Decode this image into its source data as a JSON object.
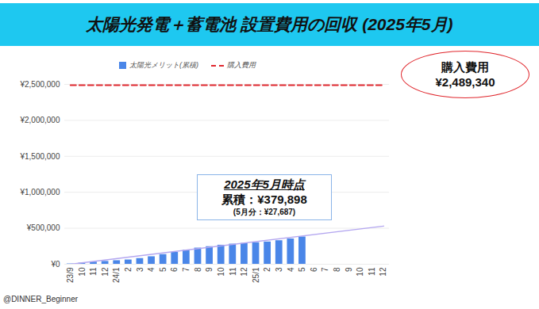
{
  "chart_data": {
    "type": "bar",
    "title": "太陽光発電＋蓄電池 設置費用の回収 (2025年5月)",
    "categories": [
      "23/9",
      "10",
      "11",
      "12",
      "24/1",
      "2",
      "3",
      "4",
      "5",
      "6",
      "7",
      "8",
      "9",
      "10",
      "11",
      "12",
      "25/1",
      "2",
      "3",
      "4",
      "5",
      "6",
      "7",
      "8",
      "9",
      "10",
      "11",
      "12"
    ],
    "series": [
      {
        "name": "太陽光メリット(累積)",
        "type": "bar",
        "color": "#4a86e8",
        "values": [
          5000,
          15000,
          30000,
          40000,
          50000,
          60000,
          80000,
          105000,
          135000,
          165000,
          195000,
          225000,
          245000,
          265000,
          280000,
          290000,
          300000,
          310000,
          328000,
          352211,
          379898,
          null,
          null,
          null,
          null,
          null,
          null,
          null
        ]
      },
      {
        "name": "購入費用",
        "type": "line",
        "color": "#e0282e",
        "line_style": "dashed",
        "values": [
          2489340,
          2489340,
          2489340,
          2489340,
          2489340,
          2489340,
          2489340,
          2489340,
          2489340,
          2489340,
          2489340,
          2489340,
          2489340,
          2489340,
          2489340,
          2489340,
          2489340,
          2489340,
          2489340,
          2489340,
          2489340,
          2489340,
          2489340,
          2489340,
          2489340,
          2489340,
          2489340,
          2489340
        ]
      }
    ],
    "trend": {
      "color": "#b4a7f0",
      "values": [
        0,
        null,
        null,
        null,
        null,
        null,
        null,
        null,
        null,
        null,
        null,
        null,
        null,
        null,
        null,
        null,
        null,
        null,
        null,
        null,
        null,
        null,
        null,
        null,
        null,
        null,
        null,
        530000
      ]
    },
    "ylim": [
      0,
      2500000
    ],
    "yticks": [
      {
        "value": 0,
        "label": "¥0"
      },
      {
        "value": 500000,
        "label": "¥500,000"
      },
      {
        "value": 1000000,
        "label": "¥1,000,000"
      },
      {
        "value": 1500000,
        "label": "¥1,500,000"
      },
      {
        "value": 2000000,
        "label": "¥2,000,000"
      },
      {
        "value": 2500000,
        "label": "¥2,500,000"
      }
    ],
    "grid": true,
    "legend": "top",
    "annotations": [
      {
        "lines": [
          "2025年5月時点",
          "累積：¥379,898",
          "(5月分：¥27,687)"
        ]
      },
      {
        "lines": [
          "購入費用",
          "¥2,489,340"
        ]
      }
    ],
    "caption": "@DINNER_Beginner"
  }
}
